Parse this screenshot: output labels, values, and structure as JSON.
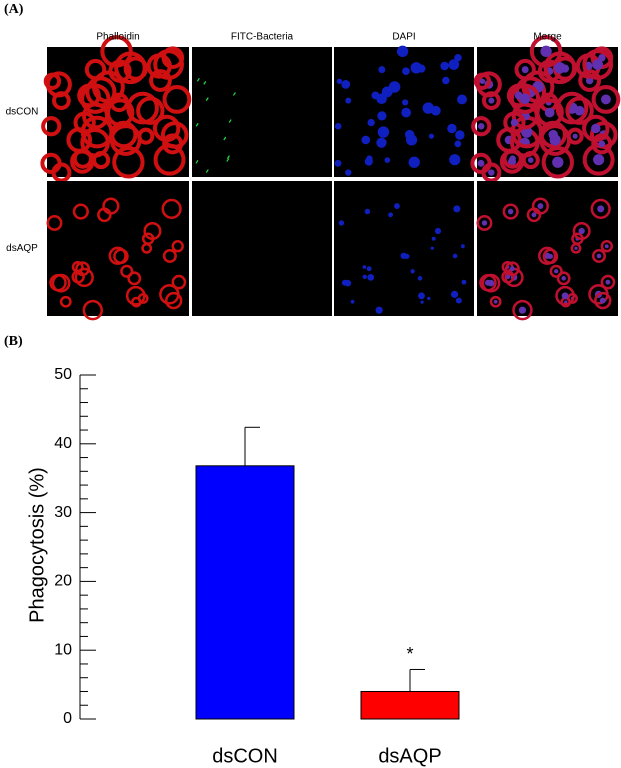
{
  "panel_a": {
    "label": "(A)",
    "columns": [
      "Phalloidin",
      "FITC-Bacteria",
      "DAPI",
      "Merge"
    ],
    "rows": [
      "dsCON",
      "dsAQP"
    ]
  },
  "chart_data": {
    "type": "bar",
    "panel_label": "(B)",
    "y_label": "Phagocytosis (%)",
    "categories": [
      "dsCON",
      "dsAQP"
    ],
    "values": [
      36.8,
      4.0
    ],
    "errors": [
      5.6,
      3.2
    ],
    "colors": [
      "#0000ff",
      "#ff0000"
    ],
    "significance": [
      null,
      "*"
    ],
    "ylim": [
      0,
      50
    ],
    "yticks": [
      0,
      10,
      20,
      30,
      40,
      50
    ],
    "yminorticks": [
      2,
      4,
      6,
      8,
      12,
      14,
      16,
      18,
      22,
      24,
      26,
      28,
      32,
      34,
      36,
      38,
      42,
      44,
      46,
      48
    ]
  }
}
